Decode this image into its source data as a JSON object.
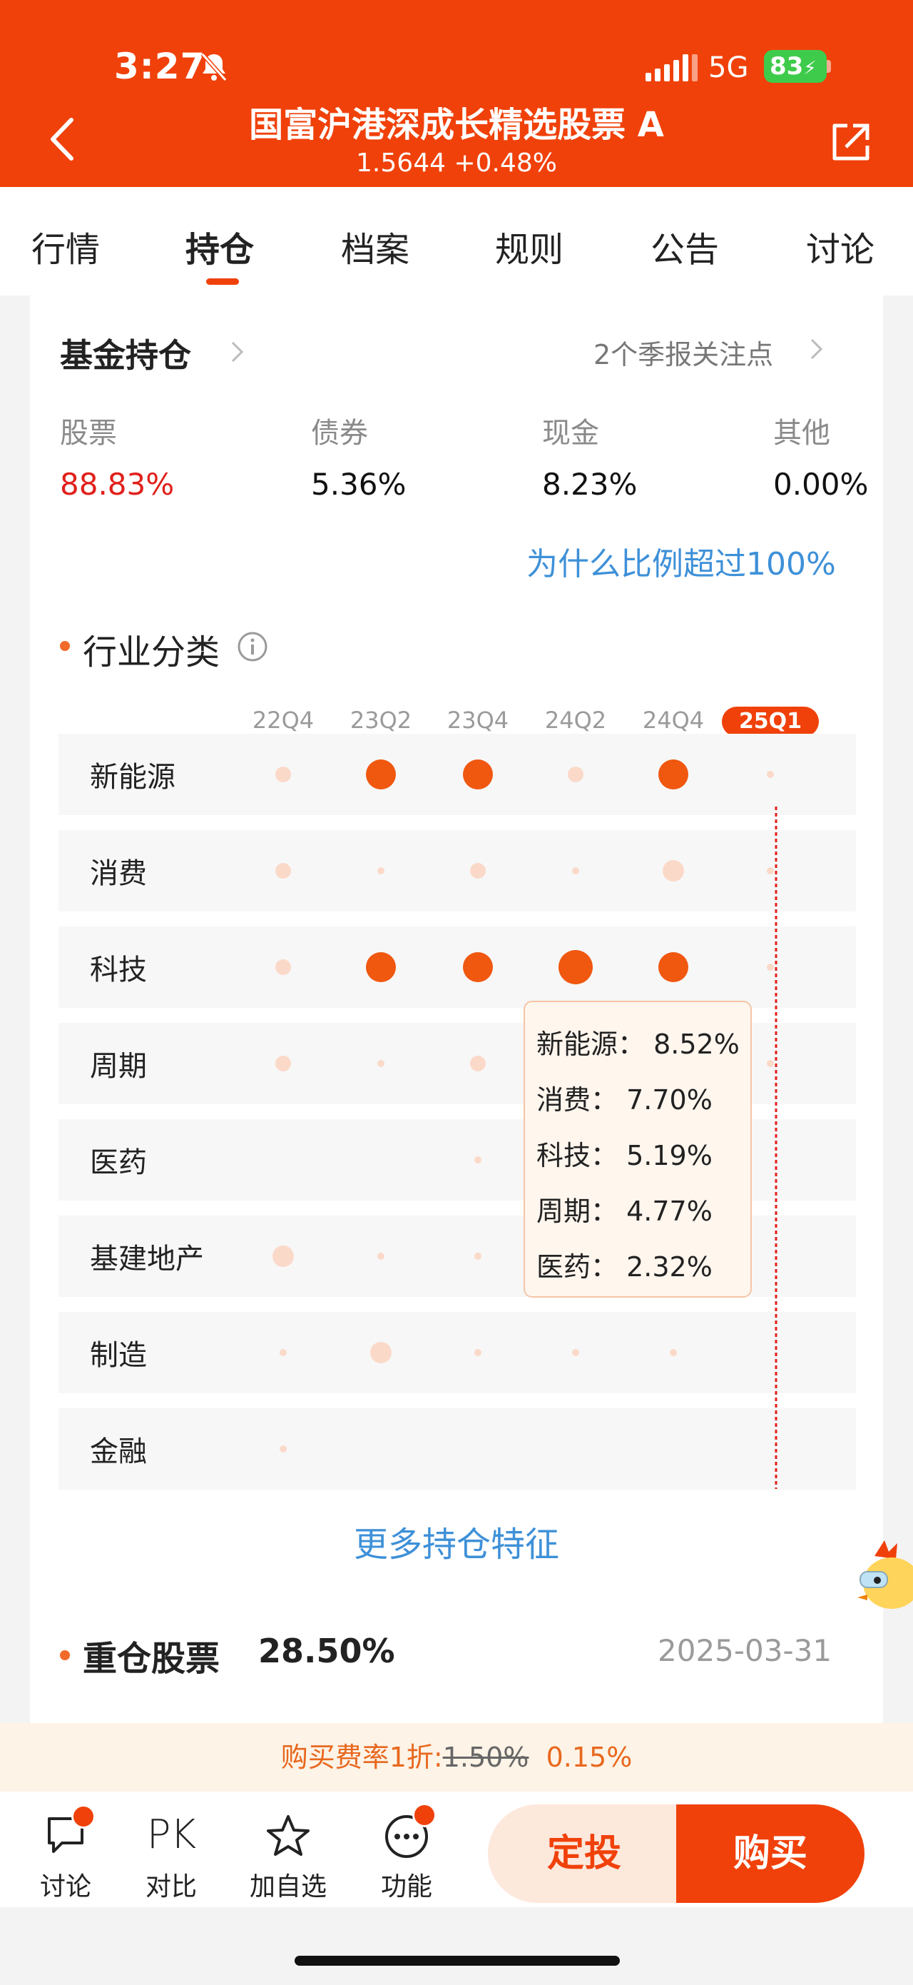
{
  "status_bar": {
    "time": "3:27",
    "network": "5G",
    "battery": "83"
  },
  "header": {
    "title": "国富沪港深成长精选股票 A",
    "subtitle": "1.5644 +0.48%"
  },
  "tabs": [
    {
      "label": "行情",
      "active": false
    },
    {
      "label": "持仓",
      "active": true
    },
    {
      "label": "档案",
      "active": false
    },
    {
      "label": "规则",
      "active": false
    },
    {
      "label": "公告",
      "active": false
    },
    {
      "label": "讨论",
      "active": false
    }
  ],
  "holdings": {
    "title": "基金持仓",
    "report_link": "2个季报关注点",
    "allocations": [
      {
        "label": "股票",
        "value": "88.83%",
        "highlight": true
      },
      {
        "label": "债券",
        "value": "5.36%",
        "highlight": false
      },
      {
        "label": "现金",
        "value": "8.23%",
        "highlight": false
      },
      {
        "label": "其他",
        "value": "0.00%",
        "highlight": false
      }
    ],
    "why_link": "为什么比例超过100%"
  },
  "industry": {
    "title": "行业分类",
    "quarters": [
      "22Q4",
      "23Q2",
      "23Q4",
      "24Q2",
      "24Q4",
      "25Q1"
    ],
    "selected_quarter": "25Q1",
    "rows": [
      {
        "label": "新能源",
        "levels": [
          2,
          4,
          4,
          2,
          4,
          1
        ]
      },
      {
        "label": "消费",
        "levels": [
          2,
          1,
          2,
          1,
          3,
          1
        ]
      },
      {
        "label": "科技",
        "levels": [
          2,
          4,
          4,
          5,
          4,
          1
        ]
      },
      {
        "label": "周期",
        "levels": [
          2,
          1,
          2,
          0,
          0,
          1
        ]
      },
      {
        "label": "医药",
        "levels": [
          0,
          0,
          1,
          0,
          0,
          0
        ]
      },
      {
        "label": "基建地产",
        "levels": [
          3,
          1,
          1,
          0,
          0,
          0
        ]
      },
      {
        "label": "制造",
        "levels": [
          1,
          3,
          1,
          1,
          1,
          0
        ]
      },
      {
        "label": "金融",
        "levels": [
          1,
          0,
          0,
          0,
          0,
          0
        ]
      }
    ],
    "tooltip": [
      {
        "name": "新能源：",
        "value": "8.52%"
      },
      {
        "name": "消费：",
        "value": "7.70%"
      },
      {
        "name": "科技：",
        "value": "5.19%"
      },
      {
        "name": "周期：",
        "value": "4.77%"
      },
      {
        "name": "医药：",
        "value": "2.32%"
      }
    ],
    "more_link": "更多持仓特征"
  },
  "heavy": {
    "title": "重仓股票",
    "pct": "28.50%",
    "date": "2025-03-31"
  },
  "fee": {
    "prefix": "购买费率1折:",
    "original": "1.50%",
    "current": "0.15%"
  },
  "bottom_bar": {
    "discuss": "讨论",
    "pk_symbol": "PK",
    "compare": "对比",
    "watchlist": "加自选",
    "functions": "功能",
    "auto_invest": "定投",
    "buy": "购买"
  },
  "colors": {
    "brand": "#f0410a",
    "dot_strong": "#f0570f",
    "dot_light": "#fbd9c9",
    "link": "#3e90d8"
  }
}
